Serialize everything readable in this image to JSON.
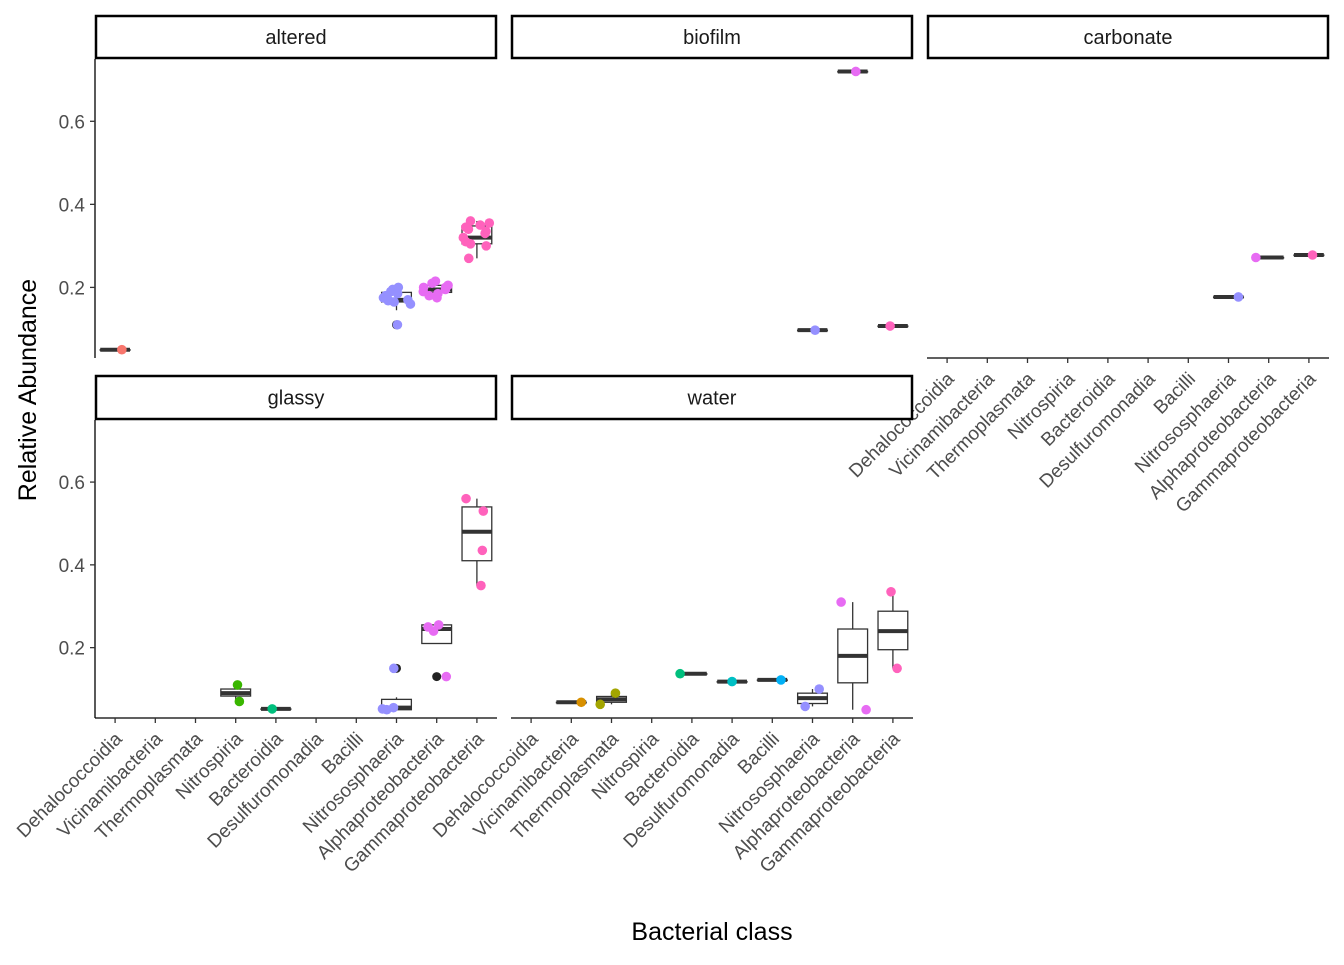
{
  "chart_data": {
    "type": "boxplot",
    "xlabel": "Bacterial class",
    "ylabel": "Relative Abundance",
    "ylim": [
      0.03,
      0.75
    ],
    "y_ticks": [
      0.2,
      0.4,
      0.6
    ],
    "y_tick_labels": [
      "0.2",
      "0.4",
      "0.6"
    ],
    "grid": false,
    "legend": "none",
    "categories": [
      "Dehalococcoidia",
      "Vicinamibacteria",
      "Thermoplasmata",
      "Nitrospiria",
      "Bacteroidia",
      "Desulfuromonadia",
      "Bacilli",
      "Nitrososphaeria",
      "Alphaproteobacteria",
      "Gammaproteobacteria"
    ],
    "class_colors": {
      "Dehalococcoidia": "#F8766D",
      "Vicinamibacteria": "#D89000",
      "Thermoplasmata": "#A3A500",
      "Nitrospiria": "#39B600",
      "Bacteroidia": "#00BF7D",
      "Desulfuromonadia": "#00BFC4",
      "Bacilli": "#00B0F6",
      "Nitrososphaeria": "#9590FF",
      "Alphaproteobacteria": "#E76BF3",
      "Gammaproteobacteria": "#FF62BC"
    },
    "outlier_color": "#222222",
    "facets": [
      {
        "name": "altered",
        "groups": [
          {
            "class": "Dehalococcoidia",
            "box": [
              0.05,
              0.05,
              0.05,
              0.05,
              0.05
            ],
            "points": [
              0.05
            ]
          },
          {
            "class": "Nitrososphaeria",
            "box": [
              0.145,
              0.165,
              0.17,
              0.188,
              0.2
            ],
            "outliers": [
              0.11
            ],
            "points": [
              0.2,
              0.195,
              0.19,
              0.185,
              0.18,
              0.175,
              0.17,
              0.168,
              0.165,
              0.16,
              0.17,
              0.11
            ]
          },
          {
            "class": "Alphaproteobacteria",
            "box": [
              0.175,
              0.188,
              0.195,
              0.205,
              0.215
            ],
            "points": [
              0.215,
              0.21,
              0.205,
              0.2,
              0.195,
              0.19,
              0.185,
              0.18,
              0.175,
              0.2
            ]
          },
          {
            "class": "Gammaproteobacteria",
            "box": [
              0.27,
              0.305,
              0.32,
              0.348,
              0.36
            ],
            "points": [
              0.36,
              0.355,
              0.35,
              0.345,
              0.34,
              0.335,
              0.33,
              0.32,
              0.31,
              0.305,
              0.3,
              0.27
            ]
          }
        ]
      },
      {
        "name": "biofilm",
        "groups": [
          {
            "class": "Nitrososphaeria",
            "box": [
              0.097,
              0.097,
              0.097,
              0.097,
              0.097
            ],
            "points": [
              0.097
            ]
          },
          {
            "class": "Alphaproteobacteria",
            "box": [
              0.72,
              0.72,
              0.72,
              0.72,
              0.72
            ],
            "points": [
              0.72
            ]
          },
          {
            "class": "Gammaproteobacteria",
            "box": [
              0.107,
              0.107,
              0.107,
              0.107,
              0.107
            ],
            "points": [
              0.107
            ]
          }
        ]
      },
      {
        "name": "carbonate",
        "groups": [
          {
            "class": "Nitrososphaeria",
            "box": [
              0.177,
              0.177,
              0.177,
              0.177,
              0.177
            ],
            "points": [
              0.177
            ]
          },
          {
            "class": "Alphaproteobacteria",
            "box": [
              0.272,
              0.272,
              0.272,
              0.272,
              0.272
            ],
            "points": [
              0.272
            ]
          },
          {
            "class": "Gammaproteobacteria",
            "box": [
              0.278,
              0.278,
              0.278,
              0.278,
              0.278
            ],
            "points": [
              0.278
            ]
          }
        ]
      },
      {
        "name": "glassy",
        "groups": [
          {
            "class": "Nitrospiria",
            "box": [
              0.07,
              0.083,
              0.09,
              0.1,
              0.11
            ],
            "points": [
              0.11,
              0.07
            ]
          },
          {
            "class": "Bacteroidia",
            "box": [
              0.052,
              0.052,
              0.052,
              0.052,
              0.052
            ],
            "points": [
              0.052
            ]
          },
          {
            "class": "Nitrososphaeria",
            "box": [
              0.05,
              0.05,
              0.055,
              0.075,
              0.08
            ],
            "outliers": [
              0.15
            ],
            "points": [
              0.15,
              0.055,
              0.05,
              0.052
            ]
          },
          {
            "class": "Alphaproteobacteria",
            "box": [
              0.21,
              0.21,
              0.245,
              0.255,
              0.255
            ],
            "outliers": [
              0.13
            ],
            "points": [
              0.255,
              0.25,
              0.24,
              0.13
            ]
          },
          {
            "class": "Gammaproteobacteria",
            "box": [
              0.35,
              0.41,
              0.48,
              0.54,
              0.56
            ],
            "points": [
              0.56,
              0.53,
              0.435,
              0.35
            ]
          }
        ]
      },
      {
        "name": "water",
        "groups": [
          {
            "class": "Vicinamibacteria",
            "box": [
              0.068,
              0.068,
              0.068,
              0.068,
              0.068
            ],
            "points": [
              0.068
            ]
          },
          {
            "class": "Thermoplasmata",
            "box": [
              0.063,
              0.068,
              0.075,
              0.082,
              0.09
            ],
            "points": [
              0.09,
              0.063
            ]
          },
          {
            "class": "Bacteroidia",
            "box": [
              0.137,
              0.137,
              0.137,
              0.137,
              0.137
            ],
            "points": [
              0.137
            ]
          },
          {
            "class": "Desulfuromonadia",
            "box": [
              0.118,
              0.118,
              0.118,
              0.118,
              0.118
            ],
            "points": [
              0.118
            ]
          },
          {
            "class": "Bacilli",
            "box": [
              0.122,
              0.122,
              0.122,
              0.122,
              0.122
            ],
            "points": [
              0.122
            ]
          },
          {
            "class": "Nitrososphaeria",
            "box": [
              0.058,
              0.065,
              0.078,
              0.09,
              0.1
            ],
            "points": [
              0.1,
              0.058
            ]
          },
          {
            "class": "Alphaproteobacteria",
            "box": [
              0.05,
              0.115,
              0.18,
              0.245,
              0.31
            ],
            "points": [
              0.31,
              0.05
            ]
          },
          {
            "class": "Gammaproteobacteria",
            "box": [
              0.15,
              0.195,
              0.24,
              0.288,
              0.335
            ],
            "points": [
              0.335,
              0.15
            ]
          }
        ]
      }
    ]
  }
}
